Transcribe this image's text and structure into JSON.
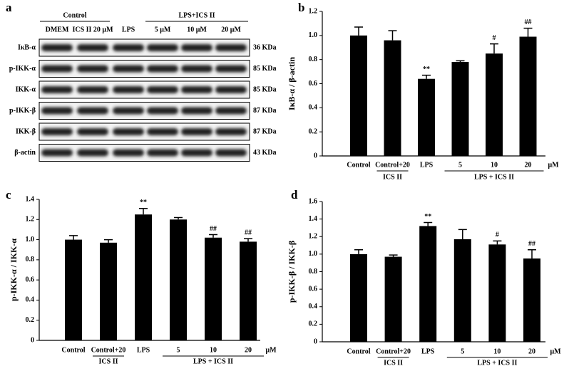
{
  "panel_a": {
    "letter": "a",
    "groups": [
      "Control",
      "LPS+ICS II"
    ],
    "lanes": [
      "DMEM",
      "ICS II 20 μM",
      "LPS",
      "5 μM",
      "10 μM",
      "20 μM"
    ],
    "rows": [
      {
        "protein": "IκB-α",
        "size": "36 KDa"
      },
      {
        "protein": "p-IKK-α",
        "size": "85 KDa"
      },
      {
        "protein": "IKK-α",
        "size": "85 KDa"
      },
      {
        "protein": "p-IKK-β",
        "size": "87 KDa"
      },
      {
        "protein": "IKK-β",
        "size": "87 KDa"
      },
      {
        "protein": "β-actin",
        "size": "43 KDa"
      }
    ]
  },
  "chart_data": [
    {
      "type": "bar",
      "panel": "b",
      "y_label": "IκB-α / β-actin",
      "color": "#000000",
      "categories": [
        "Control",
        "Control+20",
        "LPS",
        "5",
        "10",
        "20"
      ],
      "values": [
        1.0,
        0.96,
        0.64,
        0.78,
        0.85,
        0.99
      ],
      "errors": [
        0.07,
        0.08,
        0.03,
        0.01,
        0.08,
        0.07
      ],
      "annotations": [
        null,
        null,
        "**",
        null,
        "#",
        "##"
      ],
      "groups": [
        "ICS II",
        "LPS + ICS II"
      ],
      "unit": "μM",
      "ylim": [
        0,
        1.2
      ],
      "yticks": [
        0,
        0.2,
        0.4,
        0.6,
        0.8,
        {
          "value": 1,
          "label": "1.0"
        },
        1.2
      ]
    },
    {
      "type": "bar",
      "panel": "c",
      "y_label": "p-IKK-α / IKK-α",
      "color": "#000000",
      "categories": [
        "Control",
        "Control+20",
        "LPS",
        "5",
        "10",
        "20"
      ],
      "values": [
        1.0,
        0.97,
        1.25,
        1.2,
        1.02,
        0.98
      ],
      "errors": [
        0.04,
        0.03,
        0.06,
        0.02,
        0.03,
        0.03
      ],
      "annotations": [
        null,
        null,
        "**",
        null,
        "##",
        "##"
      ],
      "groups": [
        "ICS II",
        "LPS + ICS II"
      ],
      "unit": "μM",
      "ylim": [
        0,
        1.4
      ],
      "yticks": [
        0,
        0.2,
        0.4,
        0.6,
        0.8,
        {
          "value": 1,
          "label": "1.0"
        },
        1.2,
        1.4
      ]
    },
    {
      "type": "bar",
      "panel": "d",
      "y_label": "p-IKK-β / IKK-β",
      "color": "#000000",
      "categories": [
        "Control",
        "Control+20",
        "LPS",
        "5",
        "10",
        "20"
      ],
      "values": [
        1.0,
        0.97,
        1.32,
        1.17,
        1.11,
        0.95
      ],
      "errors": [
        0.05,
        0.02,
        0.04,
        0.11,
        0.04,
        0.1
      ],
      "annotations": [
        null,
        null,
        "**",
        null,
        "#",
        "##"
      ],
      "groups": [
        "ICS II",
        "LPS + ICS II"
      ],
      "unit": "μM",
      "ylim": [
        0,
        1.6
      ],
      "yticks": [
        0,
        0.2,
        0.4,
        0.6,
        0.8,
        {
          "value": 1,
          "label": "1.0"
        },
        1.2,
        1.4,
        1.6
      ]
    }
  ]
}
